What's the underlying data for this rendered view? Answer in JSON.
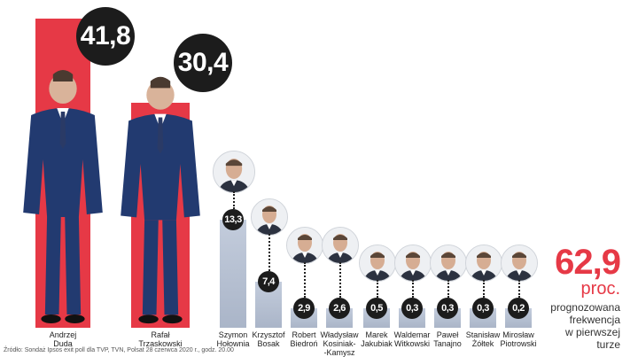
{
  "chart_data": {
    "type": "bar",
    "categories": [
      [
        "Andrzej",
        "Duda"
      ],
      [
        "Rafał",
        "Trzaskowski"
      ],
      [
        "Szymon",
        "Hołownia"
      ],
      [
        "Krzysztof",
        "Bosak"
      ],
      [
        "Robert",
        "Biedroń"
      ],
      [
        "Władysław",
        "Kosiniak-",
        "-Kamysz"
      ],
      [
        "Marek",
        "Jakubiak"
      ],
      [
        "Waldemar",
        "Witkowski"
      ],
      [
        "Paweł",
        "Tanajno"
      ],
      [
        "Stanisław",
        "Żółtek"
      ],
      [
        "Mirosław",
        "Piotrowski"
      ]
    ],
    "values": [
      41.8,
      30.4,
      13.3,
      7.4,
      2.9,
      2.6,
      0.5,
      0.3,
      0.3,
      0.3,
      0.2
    ],
    "labels": [
      "41,8",
      "30,4",
      "13,3",
      "7,4",
      "2,9",
      "2,6",
      "0,5",
      "0,3",
      "0,3",
      "0,3",
      "0,2"
    ],
    "colors": {
      "major": "#e63946",
      "minor": "#b8c1d1",
      "badge": "#1c1c1c"
    }
  },
  "turnout": {
    "value": "62,9",
    "unit": "proc.",
    "description": [
      "prognozowana",
      "frekwencja",
      "w pierwszej",
      "turze"
    ]
  },
  "source": "Źródło: Sondaż Ipsos exit poll dla TVP, TVN, Polsat 28 czerwca 2020 r., godz. 20.00"
}
